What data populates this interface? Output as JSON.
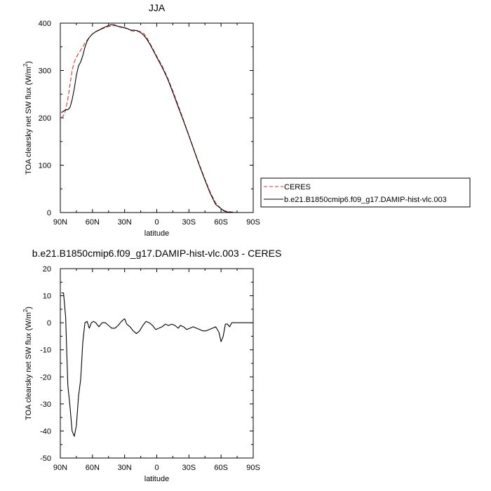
{
  "chart_data": [
    {
      "type": "line",
      "title": "JJA",
      "xlabel": "latitude",
      "ylabel": "TOA clearsky net SW flux (W/m",
      "ylabel_sup": "2",
      "ylabel_close": ")",
      "xlim": [
        90,
        -90
      ],
      "ylim": [
        0,
        400
      ],
      "xticks": [
        90,
        60,
        30,
        0,
        -30,
        -60,
        -90
      ],
      "xtick_labels": [
        "90N",
        "60N",
        "30N",
        "0",
        "30S",
        "60S",
        "90S"
      ],
      "yticks": [
        0,
        100,
        200,
        300,
        400
      ],
      "ytick_labels": [
        "0",
        "100",
        "200",
        "300",
        "400"
      ],
      "legend": "right",
      "series": [
        {
          "name": "CERES",
          "color": "#e0302a",
          "dash": "dashed",
          "x": [
            89,
            87,
            85,
            83,
            81,
            79,
            77,
            75,
            73,
            71,
            69,
            67,
            65,
            63,
            60,
            57,
            54,
            51,
            48,
            45,
            42,
            39,
            36,
            33,
            30,
            27,
            24,
            21,
            18,
            15,
            12,
            9,
            6,
            3,
            0,
            -5,
            -10,
            -15,
            -20,
            -25,
            -30,
            -35,
            -40,
            -45,
            -50,
            -55,
            -60,
            -63,
            -66,
            -69,
            -72,
            -75,
            -80,
            -85,
            -89
          ],
          "y": [
            200,
            205,
            216,
            240,
            270,
            300,
            318,
            328,
            336,
            343,
            350,
            358,
            364,
            370,
            377,
            382,
            386,
            388,
            391,
            393,
            394,
            395,
            393,
            391,
            391,
            388,
            384,
            383,
            383,
            382,
            378,
            368,
            356,
            343,
            330,
            310,
            285,
            257,
            226,
            195,
            163,
            131,
            100,
            70,
            42,
            20,
            8,
            4,
            2,
            1,
            1,
            0,
            0,
            0,
            0
          ]
        },
        {
          "name": "b.e21.B1850cmip6.f09_g17.DAMIP-hist-vlc.003",
          "color": "#000000",
          "dash": "solid",
          "x": [
            89,
            87,
            85,
            83,
            81,
            79,
            77,
            75,
            73,
            71,
            69,
            67,
            65,
            63,
            60,
            57,
            54,
            51,
            48,
            45,
            42,
            39,
            36,
            33,
            30,
            27,
            24,
            21,
            18,
            15,
            12,
            9,
            6,
            3,
            0,
            -5,
            -10,
            -15,
            -20,
            -25,
            -30,
            -35,
            -40,
            -45,
            -50,
            -55,
            -60,
            -63,
            -66,
            -69,
            -72,
            -75,
            -80,
            -85,
            -89
          ],
          "y": [
            211,
            214,
            217,
            217,
            222,
            238,
            262,
            290,
            310,
            318,
            332,
            349,
            362,
            370,
            377,
            382,
            385,
            389,
            392,
            395,
            397,
            396,
            393,
            392,
            390,
            388,
            385,
            385,
            384,
            380,
            374,
            365,
            354,
            341,
            328,
            307,
            283,
            254,
            223,
            193,
            162,
            130,
            98,
            68,
            40,
            17,
            8,
            3,
            1,
            1,
            0,
            0,
            0,
            0,
            0
          ]
        }
      ]
    },
    {
      "type": "line",
      "title": "b.e21.B1850cmip6.f09_g17.DAMIP-hist-vlc.003 - CERES",
      "xlabel": "latitude",
      "ylabel": "TOA clearsky net SW flux (W/m",
      "ylabel_sup": "2",
      "ylabel_close": ")",
      "xlim": [
        90,
        -90
      ],
      "ylim": [
        -50,
        20
      ],
      "xticks": [
        90,
        60,
        30,
        0,
        -30,
        -60,
        -90
      ],
      "xtick_labels": [
        "90N",
        "60N",
        "30N",
        "0",
        "30S",
        "60S",
        "90S"
      ],
      "yticks": [
        -50,
        -40,
        -30,
        -20,
        -10,
        0,
        10,
        20
      ],
      "ytick_labels": [
        "-50",
        "-40",
        "-30",
        "-20",
        "-10",
        "0",
        "10",
        "20"
      ],
      "series": [
        {
          "color": "#000000",
          "dash": "solid",
          "x": [
            89,
            87,
            85,
            83,
            81,
            79,
            77,
            75,
            73,
            71,
            69,
            67,
            65,
            63,
            61,
            59,
            57,
            54,
            51,
            48,
            45,
            42,
            39,
            36,
            33,
            30,
            28,
            25,
            22,
            19,
            16,
            13,
            10,
            7,
            4,
            1,
            -2,
            -5,
            -8,
            -11,
            -14,
            -17,
            -20,
            -22,
            -25,
            -28,
            -31,
            -34,
            -37,
            -40,
            -43,
            -46,
            -49,
            -52,
            -55,
            -58,
            -60,
            -62,
            -64,
            -66,
            -68,
            -70,
            -72,
            -75,
            -80,
            -85,
            -89
          ],
          "y": [
            11,
            11,
            2,
            -23,
            -31,
            -40,
            -42,
            -38,
            -27,
            -21,
            -7,
            0,
            0.5,
            -2,
            0,
            0.5,
            0,
            -1.5,
            0,
            0,
            -1,
            -2,
            -2,
            -1,
            0.5,
            1.5,
            -0.5,
            -1.5,
            -3,
            -4,
            -3,
            -1,
            0.5,
            0,
            -1,
            -2.5,
            -2,
            -1.5,
            -0.5,
            -1,
            -0.5,
            -1,
            -2,
            -1,
            -1.5,
            -2.5,
            -2,
            -1.5,
            -2,
            -2.5,
            -3,
            -3,
            -2.5,
            -2,
            -1.5,
            -3.5,
            -7,
            -5,
            -0.5,
            -0.5,
            -1.5,
            0,
            0,
            0,
            0,
            0,
            0
          ]
        }
      ]
    }
  ]
}
